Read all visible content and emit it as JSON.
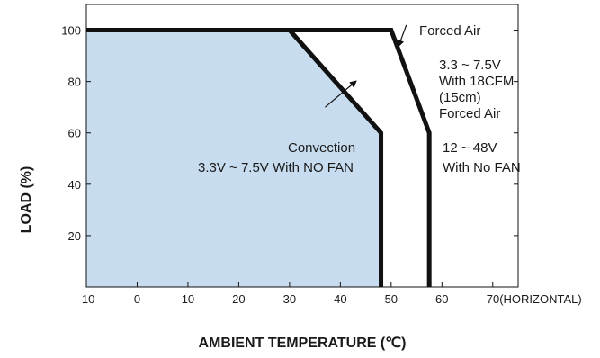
{
  "chart_data": {
    "type": "area",
    "title": "",
    "xlabel": "AMBIENT TEMPERATURE (℃)",
    "ylabel": "LOAD (%)",
    "xlim": [
      -10,
      75
    ],
    "ylim": [
      0,
      110
    ],
    "grid": false,
    "x_ticks": [
      -10,
      0,
      10,
      20,
      30,
      40,
      50,
      60,
      70
    ],
    "x_tick_labels": [
      "-10",
      "0",
      "10",
      "20",
      "30",
      "40",
      "50",
      "60",
      "70(HORIZONTAL)"
    ],
    "y_ticks": [
      20,
      40,
      60,
      80,
      100
    ],
    "y_tick_labels": [
      "20",
      "40",
      "60",
      "80",
      "100"
    ],
    "colors": {
      "fill": "#c7dcef",
      "line": "#111111"
    },
    "series": [
      {
        "x": [
          -10,
          30,
          48,
          48
        ],
        "y": [
          100,
          100,
          60,
          0
        ],
        "filled": true
      },
      {
        "x": [
          -10,
          50,
          57.5,
          57.5
        ],
        "y": [
          100,
          100,
          60,
          0
        ],
        "filled": false
      }
    ],
    "annotations": [
      {
        "lines": [
          "Forced Air"
        ],
        "arrow_from": [
          53,
          102
        ],
        "arrow_to": [
          51.5,
          94
        ]
      },
      {
        "lines": [
          "3.3 ~ 7.5V",
          "With 18CFM",
          "(15cm)",
          "Forced Air"
        ]
      },
      {
        "lines": [
          "Convection",
          "3.3V ~ 7.5V With NO FAN"
        ],
        "arrow_from": [
          37,
          70
        ],
        "arrow_to": [
          43,
          80
        ]
      },
      {
        "lines": [
          "12 ~ 48V",
          "With No FAN"
        ]
      }
    ]
  }
}
